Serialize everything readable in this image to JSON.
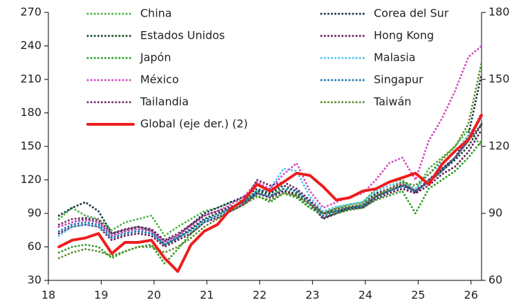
{
  "chart_data": {
    "type": "line",
    "x": [
      18.2,
      18.45,
      18.7,
      18.95,
      19.2,
      19.45,
      19.7,
      19.95,
      20.2,
      20.45,
      20.7,
      20.95,
      21.2,
      21.45,
      21.7,
      21.95,
      22.2,
      22.45,
      22.7,
      22.95,
      23.2,
      23.45,
      23.7,
      23.95,
      24.2,
      24.45,
      24.7,
      24.95,
      25.2,
      25.45,
      25.7,
      25.95,
      26.2
    ],
    "xlim": [
      18,
      26.2
    ],
    "xticks": [
      18,
      19,
      20,
      21,
      22,
      23,
      24,
      25,
      26
    ],
    "ylim": [
      30,
      270
    ],
    "yticks": [
      30,
      60,
      90,
      120,
      150,
      180,
      210,
      240,
      270
    ],
    "y2lim": [
      60,
      180
    ],
    "y2ticks": [
      60,
      90,
      120,
      150,
      180
    ],
    "series": [
      {
        "name": "China",
        "color": "#4cb548",
        "values": [
          85,
          95,
          88,
          85,
          75,
          82,
          85,
          88,
          70,
          78,
          85,
          92,
          95,
          100,
          102,
          110,
          108,
          112,
          105,
          95,
          90,
          95,
          98,
          100,
          112,
          118,
          120,
          110,
          130,
          140,
          150,
          165,
          150
        ]
      },
      {
        "name": "Corea del Sur",
        "color": "#1e3a4c",
        "values": [
          88,
          95,
          100,
          92,
          72,
          75,
          78,
          75,
          65,
          70,
          80,
          90,
          95,
          100,
          105,
          112,
          108,
          115,
          110,
          100,
          85,
          90,
          95,
          98,
          108,
          112,
          118,
          108,
          120,
          130,
          140,
          160,
          215
        ]
      },
      {
        "name": "Estados Unidos",
        "color": "#1d4d2c",
        "values": [
          78,
          82,
          85,
          82,
          70,
          74,
          76,
          74,
          62,
          68,
          76,
          85,
          90,
          95,
          100,
          110,
          106,
          110,
          108,
          100,
          90,
          92,
          95,
          96,
          105,
          110,
          115,
          110,
          118,
          128,
          138,
          150,
          170
        ]
      },
      {
        "name": "Hong Kong",
        "color": "#6b1f5c",
        "values": [
          72,
          78,
          80,
          78,
          66,
          70,
          72,
          70,
          60,
          66,
          72,
          82,
          86,
          92,
          98,
          108,
          104,
          110,
          106,
          98,
          86,
          90,
          94,
          95,
          103,
          108,
          112,
          108,
          115,
          125,
          132,
          145,
          165
        ]
      },
      {
        "name": "Japón",
        "color": "#2ea02c",
        "values": [
          55,
          60,
          62,
          60,
          50,
          56,
          60,
          62,
          45,
          58,
          72,
          82,
          88,
          95,
          100,
          106,
          100,
          108,
          104,
          95,
          88,
          90,
          93,
          95,
          102,
          106,
          110,
          90,
          112,
          120,
          128,
          140,
          155
        ]
      },
      {
        "name": "Malasia",
        "color": "#4fc3f0",
        "values": [
          70,
          78,
          80,
          78,
          68,
          72,
          74,
          72,
          62,
          68,
          74,
          82,
          88,
          95,
          100,
          110,
          112,
          130,
          128,
          105,
          92,
          96,
          98,
          100,
          110,
          115,
          118,
          112,
          125,
          135,
          145,
          160,
          175
        ]
      },
      {
        "name": "México",
        "color": "#d64fc4",
        "values": [
          78,
          82,
          84,
          82,
          70,
          74,
          76,
          74,
          64,
          70,
          78,
          88,
          92,
          98,
          105,
          118,
          112,
          125,
          135,
          110,
          95,
          100,
          105,
          108,
          120,
          135,
          140,
          120,
          155,
          175,
          200,
          230,
          240
        ]
      },
      {
        "name": "Singapur",
        "color": "#1f78b4",
        "values": [
          74,
          80,
          82,
          80,
          68,
          72,
          74,
          72,
          62,
          68,
          75,
          84,
          88,
          94,
          100,
          108,
          105,
          112,
          110,
          100,
          88,
          92,
          95,
          96,
          105,
          110,
          114,
          110,
          118,
          128,
          140,
          155,
          180
        ]
      },
      {
        "name": "Tailandia",
        "color": "#7b2d6e",
        "values": [
          80,
          85,
          86,
          84,
          72,
          76,
          78,
          76,
          66,
          72,
          80,
          88,
          92,
          96,
          100,
          120,
          115,
          118,
          112,
          102,
          90,
          94,
          96,
          98,
          106,
          112,
          116,
          110,
          120,
          130,
          140,
          155,
          170
        ]
      },
      {
        "name": "Taiwán",
        "color": "#5e8f2e",
        "values": [
          50,
          55,
          58,
          56,
          52,
          56,
          60,
          60,
          55,
          60,
          68,
          78,
          85,
          92,
          98,
          105,
          102,
          108,
          106,
          98,
          90,
          94,
          96,
          98,
          106,
          112,
          118,
          115,
          125,
          138,
          150,
          170,
          225
        ]
      },
      {
        "name": "Global (eje der.) (2)",
        "color": "#ee1c1c",
        "axis": "y2",
        "values": [
          75,
          78,
          79,
          81,
          72,
          77,
          77,
          78,
          70,
          64,
          76,
          82,
          85,
          92,
          96,
          103,
          100,
          104,
          108,
          107,
          102,
          96,
          97,
          100,
          101,
          104,
          106,
          108,
          103,
          112,
          118,
          123,
          134
        ]
      }
    ]
  }
}
